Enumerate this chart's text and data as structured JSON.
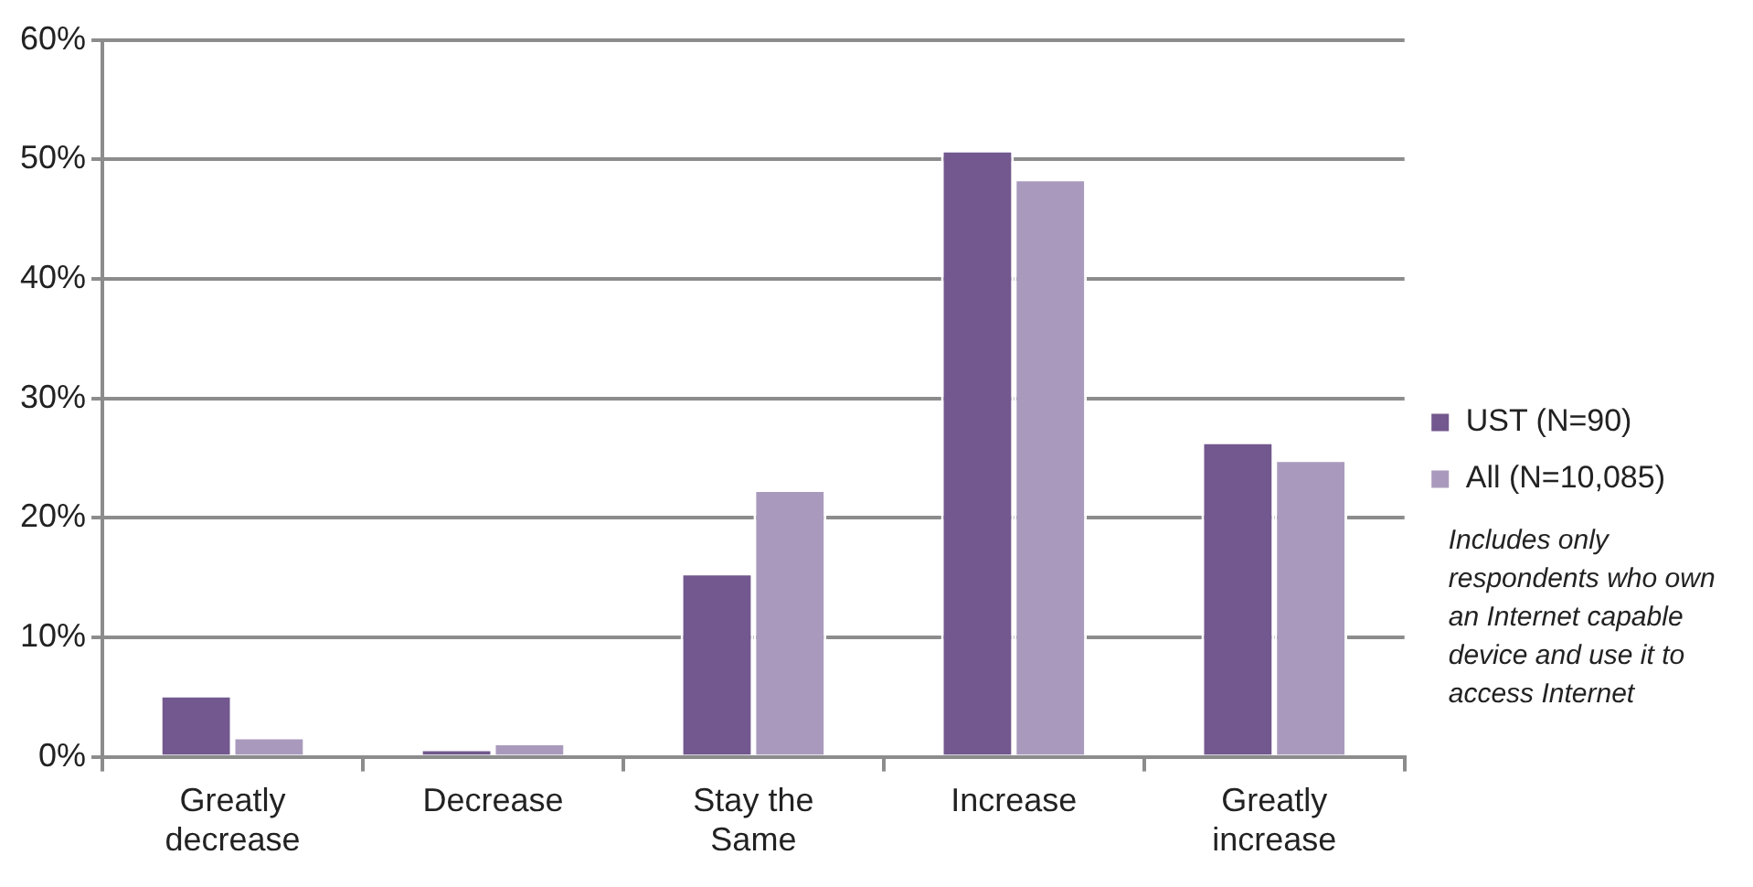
{
  "chart_data": {
    "type": "bar",
    "categories": [
      "Greatly decrease",
      "Decrease",
      "Stay the Same",
      "Increase",
      "Greatly increase"
    ],
    "series": [
      {
        "name": "UST (N=90)",
        "color": "#72588e",
        "values": [
          5.2,
          0.7,
          15.4,
          50.8,
          26.4
        ]
      },
      {
        "name": "All (N=10,085)",
        "color": "#a99abd",
        "values": [
          1.7,
          1.2,
          22.4,
          48.4,
          24.9
        ]
      }
    ],
    "ylim": [
      0,
      60
    ],
    "yticks": [
      {
        "value": 0,
        "label": "0%"
      },
      {
        "value": 10,
        "label": "10%"
      },
      {
        "value": 20,
        "label": "20%"
      },
      {
        "value": 30,
        "label": "30%"
      },
      {
        "value": 40,
        "label": "40%"
      },
      {
        "value": 50,
        "label": "50%"
      },
      {
        "value": 60,
        "label": "60%"
      }
    ],
    "grid": "y",
    "legend": "right",
    "annotations": [
      "Includes only respondents who own an Internet capable device and use it to access Internet"
    ]
  }
}
